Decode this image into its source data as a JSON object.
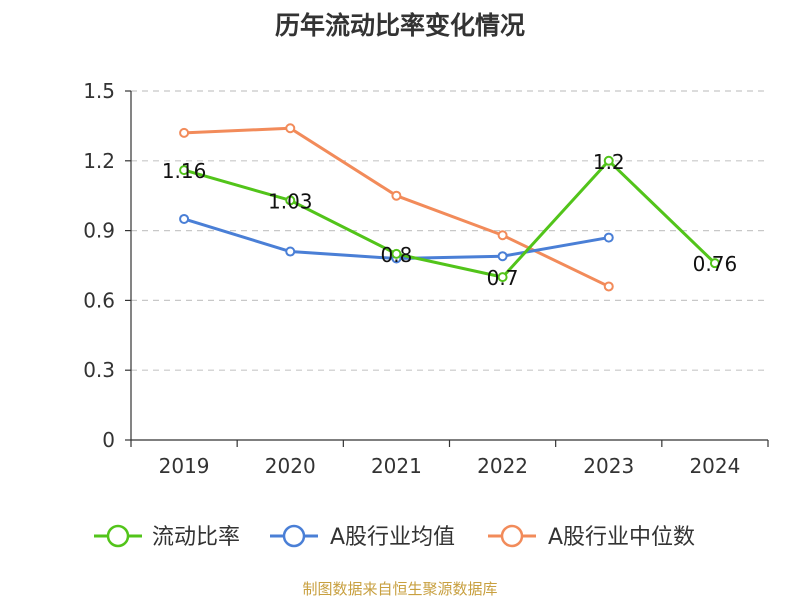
{
  "chart_data": {
    "type": "line",
    "title": "历年流动比率变化情况",
    "categories": [
      "2019",
      "2020",
      "2021",
      "2022",
      "2023",
      "2024"
    ],
    "ylim": [
      0,
      1.5
    ],
    "yticks": [
      "0",
      "0.3",
      "0.6",
      "0.9",
      "1.2",
      "1.5"
    ],
    "grid": true,
    "legend_position": "bottom",
    "series": [
      {
        "name": "流动比率",
        "color": "#52c41a",
        "values": [
          1.16,
          1.03,
          0.8,
          0.7,
          1.2,
          0.76
        ],
        "labels": [
          "1.16",
          "1.03",
          "0.8",
          "0.7",
          "1.2",
          "0.76"
        ]
      },
      {
        "name": "A股行业均值",
        "color": "#4a7fd6",
        "values": [
          0.95,
          0.81,
          0.78,
          0.79,
          0.87,
          null
        ]
      },
      {
        "name": "A股行业中位数",
        "color": "#f28b5a",
        "values": [
          1.32,
          1.34,
          1.05,
          0.88,
          0.66,
          null
        ]
      }
    ]
  },
  "source_note": "制图数据来自恒生聚源数据库"
}
